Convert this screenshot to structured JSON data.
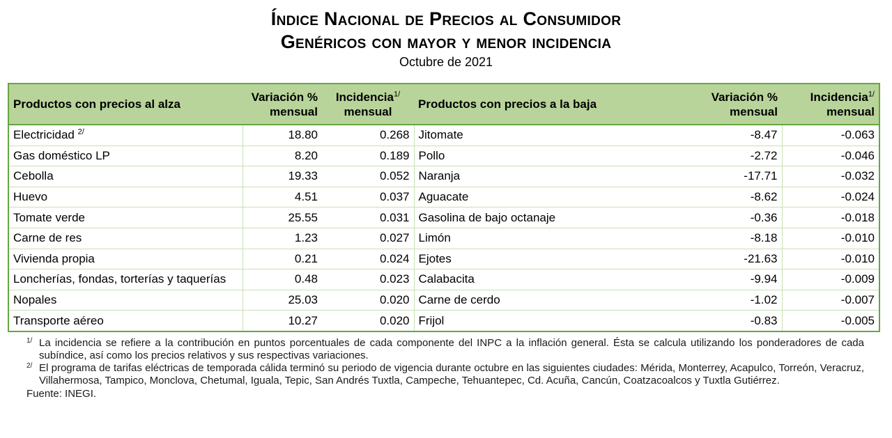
{
  "title_line1": "Índice Nacional de Precios al Consumidor",
  "title_line2": "Genéricos con mayor y menor incidencia",
  "subtitle": "Octubre de 2021",
  "headers": {
    "alza": "Productos con precios al alza",
    "var_l1": "Variación %",
    "var_l2": "mensual",
    "inc_l1": "Incidencia",
    "inc_sup": "1/",
    "inc_l2": "mensual",
    "baja": "Productos con precios a la baja"
  },
  "rows": [
    {
      "up_name": "Electricidad",
      "up_sup": "2/",
      "up_var": "18.80",
      "up_inc": "0.268",
      "dn_name": "Jitomate",
      "dn_var": "-8.47",
      "dn_inc": "-0.063"
    },
    {
      "up_name": "Gas doméstico LP",
      "up_sup": "",
      "up_var": "8.20",
      "up_inc": "0.189",
      "dn_name": "Pollo",
      "dn_var": "-2.72",
      "dn_inc": "-0.046"
    },
    {
      "up_name": "Cebolla",
      "up_sup": "",
      "up_var": "19.33",
      "up_inc": "0.052",
      "dn_name": "Naranja",
      "dn_var": "-17.71",
      "dn_inc": "-0.032"
    },
    {
      "up_name": "Huevo",
      "up_sup": "",
      "up_var": "4.51",
      "up_inc": "0.037",
      "dn_name": "Aguacate",
      "dn_var": "-8.62",
      "dn_inc": "-0.024"
    },
    {
      "up_name": "Tomate verde",
      "up_sup": "",
      "up_var": "25.55",
      "up_inc": "0.031",
      "dn_name": "Gasolina de bajo octanaje",
      "dn_var": "-0.36",
      "dn_inc": "-0.018"
    },
    {
      "up_name": "Carne de res",
      "up_sup": "",
      "up_var": "1.23",
      "up_inc": "0.027",
      "dn_name": "Limón",
      "dn_var": "-8.18",
      "dn_inc": "-0.010"
    },
    {
      "up_name": "Vivienda propia",
      "up_sup": "",
      "up_var": "0.21",
      "up_inc": "0.024",
      "dn_name": "Ejotes",
      "dn_var": "-21.63",
      "dn_inc": "-0.010"
    },
    {
      "up_name": "Loncherías, fondas, torterías y taquerías",
      "up_sup": "",
      "up_var": "0.48",
      "up_inc": "0.023",
      "dn_name": "Calabacita",
      "dn_var": "-9.94",
      "dn_inc": "-0.009"
    },
    {
      "up_name": "Nopales",
      "up_sup": "",
      "up_var": "25.03",
      "up_inc": "0.020",
      "dn_name": "Carne de cerdo",
      "dn_var": "-1.02",
      "dn_inc": "-0.007"
    },
    {
      "up_name": "Transporte aéreo",
      "up_sup": "",
      "up_var": "10.27",
      "up_inc": "0.020",
      "dn_name": "Frijol",
      "dn_var": "-0.83",
      "dn_inc": "-0.005"
    }
  ],
  "notes": [
    {
      "mark": "1/",
      "text": "La incidencia se refiere a la contribución en puntos porcentuales de cada componente del INPC a la inflación general. Ésta se calcula utilizando los ponderadores de cada subíndice, así como los precios relativos y sus respectivas variaciones."
    },
    {
      "mark": "2/",
      "text": "El programa de tarifas eléctricas de temporada cálida terminó su periodo de vigencia durante octubre en las siguientes ciudades: Mérida, Monterrey, Acapulco, Torreón, Veracruz, Villahermosa, Tampico, Monclova, Chetumal, Iguala, Tepic, San Andrés Tuxtla, Campeche, Tehuantepec, Cd. Acuña, Cancún, Coatzacoalcos y Tuxtla Gutiérrez."
    }
  ],
  "source": "Fuente: INEGI.",
  "colors": {
    "header_bg": "#b8d49a",
    "border": "#66a640"
  }
}
